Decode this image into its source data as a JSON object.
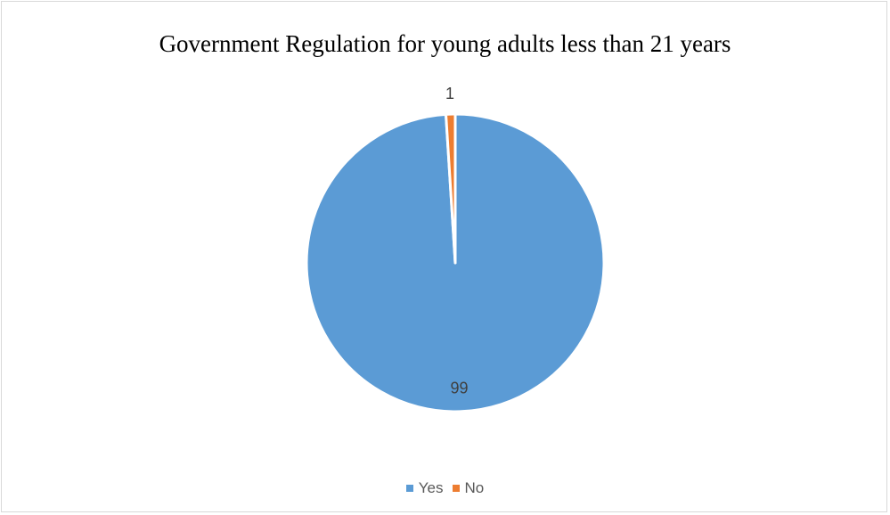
{
  "chart_data": {
    "type": "pie",
    "title": "Government Regulation for young adults less than 21 years",
    "categories": [
      "Yes",
      "No"
    ],
    "values": [
      99,
      1
    ],
    "data_labels": [
      "99",
      "1"
    ],
    "colors": [
      "#5b9bd5",
      "#ed7d31"
    ],
    "legend_position": "bottom",
    "start_angle_deg": 0
  }
}
